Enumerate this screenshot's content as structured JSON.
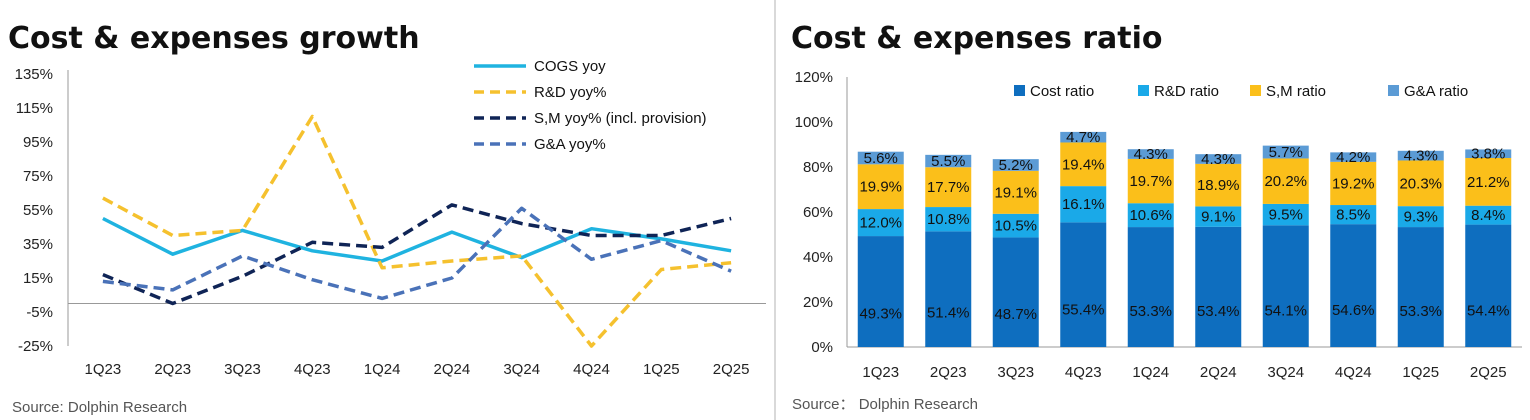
{
  "left_panel": {
    "title": "Cost & expenses growth",
    "source": "Source: Dolphin Research"
  },
  "right_panel": {
    "title": "Cost & expenses ratio",
    "source": "Source： Dolphin Research"
  },
  "chart_data": [
    {
      "type": "line",
      "title": "Cost & expenses growth",
      "categories": [
        "1Q23",
        "2Q23",
        "3Q23",
        "4Q23",
        "1Q24",
        "2Q24",
        "3Q24",
        "4Q24",
        "1Q25",
        "2Q25"
      ],
      "y_ticks": [
        "135%",
        "115%",
        "95%",
        "75%",
        "55%",
        "35%",
        "15%",
        "-5%",
        "-25%"
      ],
      "ylim": [
        -25,
        135
      ],
      "legend_position": "top-right",
      "grid": false,
      "series": [
        {
          "name": "COGS yoy",
          "color": "#1fb3e0",
          "dash": "solid",
          "values": [
            50,
            29,
            43,
            31,
            25,
            42,
            27,
            44,
            38,
            31
          ]
        },
        {
          "name": "R&D yoy%",
          "color": "#f5c12e",
          "dash": "dash",
          "values": [
            62,
            40,
            43,
            110,
            21,
            25,
            28,
            -25,
            20,
            24
          ]
        },
        {
          "name": "S,M yoy% (incl. provision)",
          "color": "#0f2456",
          "dash": "dash",
          "values": [
            17,
            0,
            16,
            36,
            33,
            58,
            47,
            40,
            40,
            50
          ]
        },
        {
          "name": "G&A yoy%",
          "color": "#4a72b8",
          "dash": "dash",
          "values": [
            13,
            8,
            28,
            14,
            3,
            15,
            56,
            26,
            37,
            19
          ]
        }
      ]
    },
    {
      "type": "bar",
      "stacked": true,
      "title": "Cost & expenses ratio",
      "categories": [
        "1Q23",
        "2Q23",
        "3Q23",
        "4Q23",
        "1Q24",
        "2Q24",
        "3Q24",
        "4Q24",
        "1Q25",
        "2Q25"
      ],
      "y_ticks": [
        "120%",
        "100%",
        "80%",
        "60%",
        "40%",
        "20%",
        "0%"
      ],
      "ylim": [
        0,
        120
      ],
      "legend_position": "top",
      "grid": false,
      "series": [
        {
          "name": "Cost ratio",
          "color": "#0e6ebf",
          "values": [
            49.3,
            51.4,
            48.7,
            55.4,
            53.3,
            53.4,
            54.1,
            54.6,
            53.3,
            54.4
          ],
          "labels": [
            "49.3%",
            "51.4%",
            "48.7%",
            "55.4%",
            "53.3%",
            "53.4%",
            "54.1%",
            "54.6%",
            "53.3%",
            "54.4%"
          ]
        },
        {
          "name": "R&D ratio",
          "color": "#1aa9e8",
          "values": [
            12.0,
            10.8,
            10.5,
            16.1,
            10.6,
            9.1,
            9.5,
            8.5,
            9.3,
            8.4
          ],
          "labels": [
            "12.0%",
            "10.8%",
            "10.5%",
            "16.1%",
            "10.6%",
            "9.1%",
            "9.5%",
            "8.5%",
            "9.3%",
            "8.4%"
          ]
        },
        {
          "name": "S,M ratio",
          "color": "#fbbf1a",
          "values": [
            19.9,
            17.7,
            19.1,
            19.4,
            19.7,
            18.9,
            20.2,
            19.2,
            20.3,
            21.2
          ],
          "labels": [
            "19.9%",
            "17.7%",
            "19.1%",
            "19.4%",
            "19.7%",
            "18.9%",
            "20.2%",
            "19.2%",
            "20.3%",
            "21.2%"
          ]
        },
        {
          "name": "G&A ratio",
          "color": "#5b9bd5",
          "values": [
            5.6,
            5.5,
            5.2,
            4.7,
            4.3,
            4.3,
            5.7,
            4.2,
            4.3,
            3.8
          ],
          "labels": [
            "5.6%",
            "5.5%",
            "5.2%",
            "4.7%",
            "4.3%",
            "4.3%",
            "5.7%",
            "4.2%",
            "4.3%",
            "3.8%"
          ]
        }
      ]
    }
  ]
}
